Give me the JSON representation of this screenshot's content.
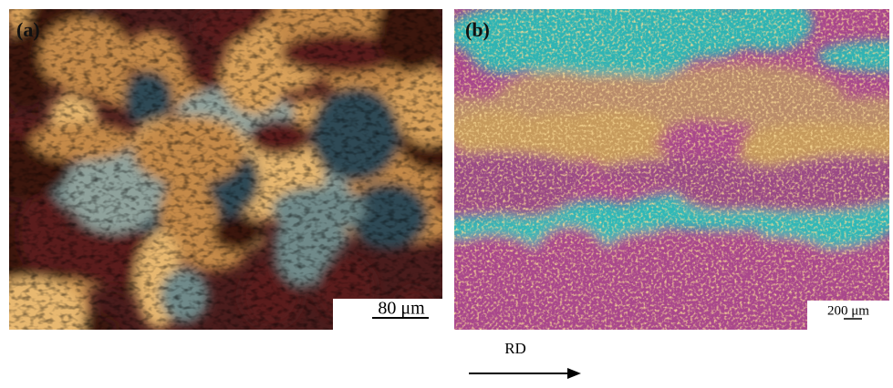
{
  "panels": [
    {
      "label": "(a)",
      "scale_bar": "80 μm"
    },
    {
      "label": "(b)",
      "scale_bar": "200 μm"
    }
  ],
  "direction_label": "RD"
}
